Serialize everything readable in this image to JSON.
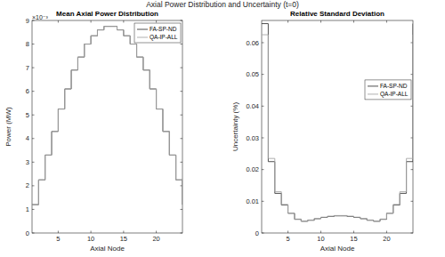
{
  "title": "Axial Power Distribution and Uncertainty (t=0)",
  "chart_data": [
    {
      "type": "line",
      "line_style": "steps",
      "title": "Mean Axial Power Distribution",
      "x_label": "Axial Node",
      "y_label": "Power (MW)",
      "annotations": [
        {
          "text": "×10⁻³"
        }
      ],
      "x": [
        1,
        2,
        3,
        4,
        5,
        6,
        7,
        8,
        9,
        10,
        11,
        12,
        13,
        14,
        15,
        16,
        17,
        18,
        19,
        20,
        21,
        22,
        23,
        24
      ],
      "xlim": [
        1,
        24
      ],
      "xticks": [
        5,
        10,
        15,
        20
      ],
      "ylim": [
        0,
        9
      ],
      "yticks": [
        0,
        1,
        2,
        3,
        4,
        5,
        6,
        7,
        8,
        9
      ],
      "grid": false,
      "legend": "upper right",
      "series": [
        {
          "name": "FA-SP-ND",
          "color": "#3a3a3a",
          "values": [
            1.2,
            2.25,
            3.3,
            4.3,
            5.25,
            6.1,
            6.9,
            7.45,
            8.0,
            8.35,
            8.6,
            8.75,
            8.75,
            8.6,
            8.35,
            8.0,
            7.45,
            6.9,
            6.1,
            5.25,
            4.3,
            3.3,
            2.25,
            1.2
          ]
        },
        {
          "name": "QA-IP-ALL",
          "color": "#a6a6a6",
          "values": [
            1.2,
            2.25,
            3.3,
            4.3,
            5.25,
            6.1,
            6.9,
            7.45,
            8.0,
            8.35,
            8.6,
            8.75,
            8.75,
            8.6,
            8.35,
            8.0,
            7.45,
            6.9,
            6.1,
            5.25,
            4.3,
            3.3,
            2.25,
            1.2
          ]
        }
      ]
    },
    {
      "type": "line",
      "line_style": "steps",
      "title": "Relative Standard Deviation",
      "x_label": "Axial Node",
      "y_label": "Uncertainty (%)",
      "x": [
        1,
        2,
        3,
        4,
        5,
        6,
        7,
        8,
        9,
        10,
        11,
        12,
        13,
        14,
        15,
        16,
        17,
        18,
        19,
        20,
        21,
        22,
        23,
        24
      ],
      "xlim": [
        1,
        24
      ],
      "xticks": [
        5,
        10,
        15,
        20
      ],
      "ylim": [
        0,
        0.067
      ],
      "yticks": [
        0,
        0.01,
        0.02,
        0.03,
        0.04,
        0.05,
        0.06
      ],
      "grid": false,
      "legend": "right",
      "series": [
        {
          "name": "FA-SP-ND",
          "color": "#3a3a3a",
          "values": [
            0.066,
            0.0225,
            0.0125,
            0.0088,
            0.0062,
            0.0043,
            0.0037,
            0.004,
            0.0045,
            0.0049,
            0.0052,
            0.0054,
            0.0054,
            0.0052,
            0.0049,
            0.0045,
            0.004,
            0.0037,
            0.0043,
            0.0062,
            0.0088,
            0.0125,
            0.0225,
            0.066
          ]
        },
        {
          "name": "QA-IP-ALL",
          "color": "#a6a6a6",
          "values": [
            0.0625,
            0.0235,
            0.013,
            0.009,
            0.0063,
            0.0044,
            0.0037,
            0.0041,
            0.0046,
            0.005,
            0.0053,
            0.0055,
            0.0055,
            0.0053,
            0.005,
            0.0046,
            0.0041,
            0.0037,
            0.0044,
            0.0063,
            0.009,
            0.013,
            0.0235,
            0.0625
          ]
        }
      ]
    }
  ]
}
